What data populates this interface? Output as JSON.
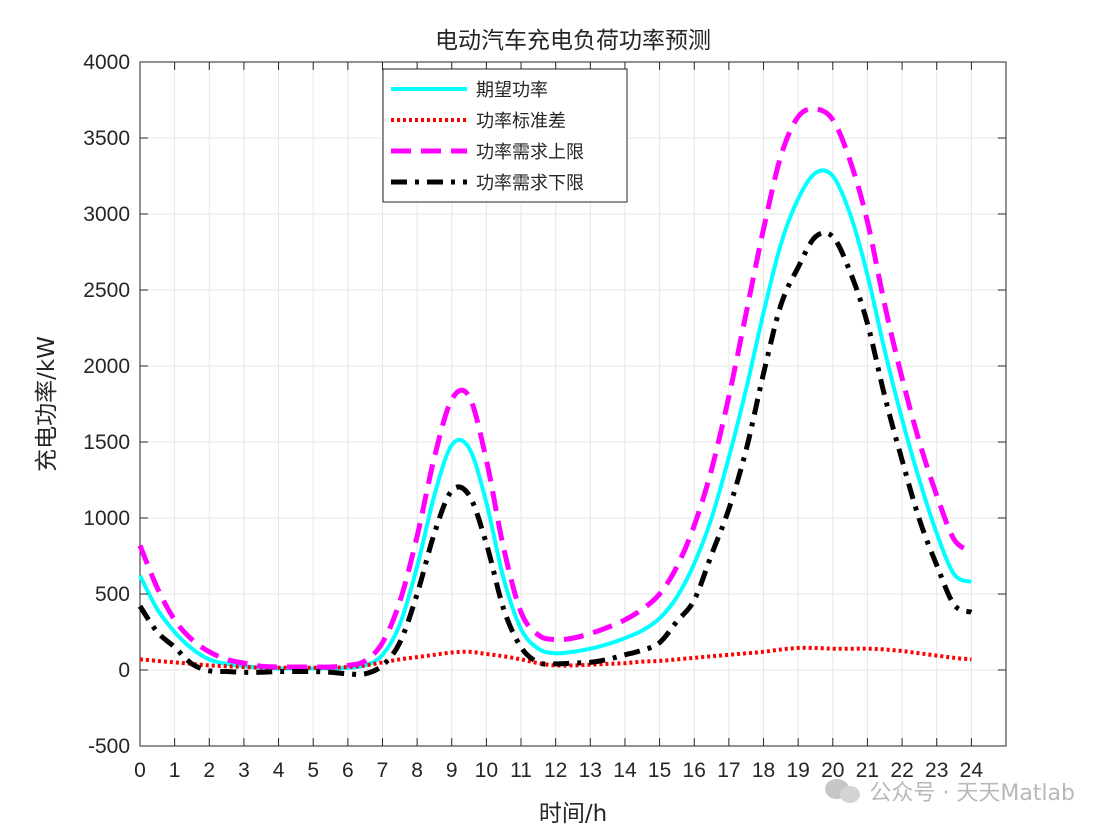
{
  "chart_data": {
    "type": "line",
    "title": "电动汽车充电负荷功率预测",
    "xlabel": "时间/h",
    "ylabel": "充电功率/kW",
    "xlim": [
      0,
      25
    ],
    "ylim": [
      -500,
      4000
    ],
    "xticks": [
      "0",
      "1",
      "2",
      "3",
      "4",
      "5",
      "6",
      "7",
      "8",
      "9",
      "10",
      "11",
      "12",
      "13",
      "14",
      "15",
      "16",
      "17",
      "18",
      "19",
      "20",
      "21",
      "22",
      "23",
      "24"
    ],
    "yticks": [
      "-500",
      "0",
      "500",
      "1000",
      "1500",
      "2000",
      "2500",
      "3000",
      "3500",
      "4000"
    ],
    "grid": true,
    "legend_position": "top-center",
    "x": [
      0,
      0.5,
      1,
      1.5,
      2,
      2.5,
      3,
      3.5,
      4,
      4.5,
      5,
      5.5,
      6,
      6.5,
      7,
      7.5,
      8,
      8.5,
      9,
      9.5,
      10,
      10.5,
      11,
      11.5,
      12,
      12.5,
      13,
      13.5,
      14,
      14.5,
      15,
      15.5,
      16,
      16.5,
      17,
      17.5,
      18,
      18.5,
      19,
      19.5,
      20,
      20.5,
      21,
      21.5,
      22,
      22.5,
      23,
      23.5,
      24
    ],
    "series": [
      {
        "name": "期望功率",
        "color": "#00FFFF",
        "style": "solid",
        "values": [
          620,
          400,
          250,
          140,
          70,
          40,
          25,
          15,
          10,
          10,
          10,
          10,
          15,
          30,
          100,
          300,
          680,
          1150,
          1480,
          1460,
          1100,
          600,
          270,
          140,
          110,
          120,
          140,
          170,
          210,
          260,
          340,
          480,
          700,
          1000,
          1400,
          1850,
          2350,
          2800,
          3100,
          3270,
          3250,
          3000,
          2600,
          2100,
          1650,
          1250,
          900,
          630,
          580
        ]
      },
      {
        "name": "功率标准差",
        "color": "#FF0000",
        "style": "dotted",
        "values": [
          70,
          60,
          50,
          40,
          30,
          25,
          20,
          15,
          15,
          15,
          15,
          15,
          20,
          30,
          50,
          70,
          85,
          100,
          115,
          120,
          105,
          90,
          70,
          45,
          30,
          30,
          35,
          40,
          45,
          55,
          60,
          70,
          80,
          90,
          100,
          110,
          120,
          135,
          145,
          145,
          140,
          140,
          140,
          135,
          125,
          110,
          95,
          80,
          70
        ]
      },
      {
        "name": "功率需求上限",
        "color": "#FF00FF",
        "style": "dashed",
        "values": [
          820,
          540,
          330,
          200,
          120,
          70,
          45,
          25,
          20,
          20,
          20,
          20,
          30,
          60,
          180,
          450,
          880,
          1400,
          1780,
          1800,
          1380,
          800,
          380,
          230,
          200,
          210,
          240,
          280,
          330,
          400,
          500,
          680,
          950,
          1320,
          1800,
          2350,
          2900,
          3380,
          3640,
          3690,
          3620,
          3350,
          2950,
          2400,
          1920,
          1500,
          1150,
          860,
          780
        ]
      },
      {
        "name": "功率需求下限",
        "color": "#000000",
        "style": "dashdot",
        "values": [
          420,
          250,
          150,
          40,
          -5,
          -10,
          -15,
          -15,
          -10,
          -10,
          -10,
          -15,
          -25,
          -25,
          30,
          180,
          500,
          900,
          1180,
          1150,
          830,
          400,
          150,
          50,
          40,
          45,
          50,
          70,
          100,
          130,
          180,
          320,
          460,
          760,
          1060,
          1450,
          1950,
          2400,
          2650,
          2850,
          2850,
          2620,
          2280,
          1800,
          1380,
          990,
          690,
          430,
          380
        ]
      }
    ]
  },
  "watermark": {
    "text": "公众号 · 天天Matlab",
    "icon": "wechat-icon"
  }
}
